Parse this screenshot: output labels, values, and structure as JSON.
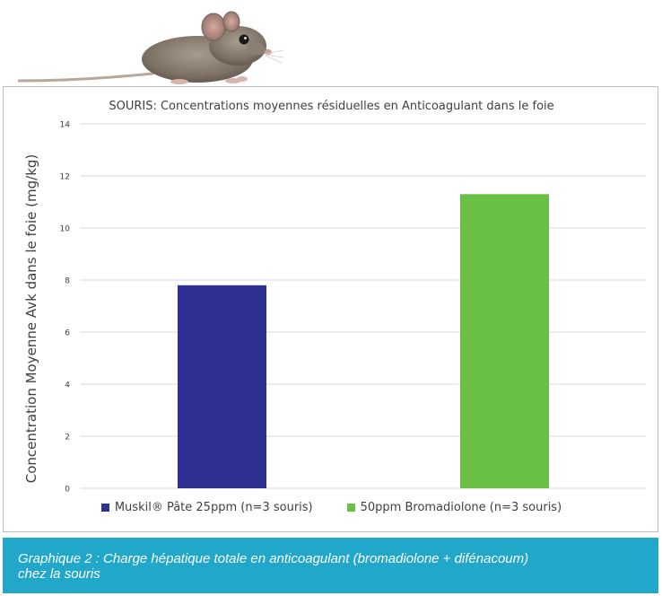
{
  "chart_data": {
    "type": "bar",
    "title": "SOURIS: Concentrations moyennes résiduelles en Anticoagulant dans le foie",
    "ylabel": "Concentration Moyenne Avk dans le foie (mg/kg)",
    "xlabel": "",
    "ylim": [
      0,
      14
    ],
    "yticks": [
      0,
      2,
      4,
      6,
      8,
      10,
      12,
      14
    ],
    "grid": true,
    "legend_position": "bottom",
    "series": [
      {
        "name": "Muskil® Pâte 25ppm (n=3 souris)",
        "values": [
          7.8
        ],
        "color": "#2e3192"
      },
      {
        "name": "50ppm Bromadiolone (n=3 souris)",
        "values": [
          11.3
        ],
        "color": "#6abf45"
      }
    ]
  },
  "caption": {
    "line1": "Graphique 2 : Charge hépatique totale en anticoagulant (bromadiolone + difénacoum)",
    "line2": "chez la souris"
  },
  "colors": {
    "caption_bg": "#21a7c9",
    "grid": "#d9d9d9",
    "text": "#404040"
  },
  "icons": {
    "header_image": "mouse-icon"
  }
}
